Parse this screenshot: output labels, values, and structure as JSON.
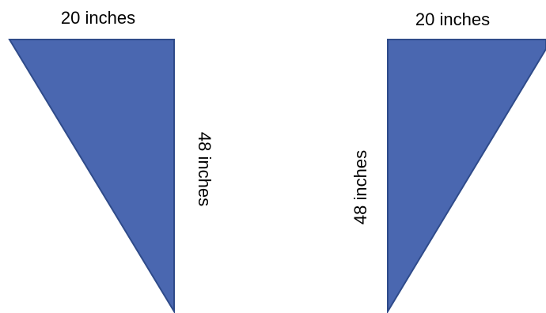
{
  "colors": {
    "triangle_fill": "#4a67b0",
    "triangle_stroke": "#2f4b8a",
    "text": "#000000",
    "background": "#ffffff"
  },
  "left_triangle": {
    "top_label": "20 inches",
    "side_label": "48 inches"
  },
  "right_triangle": {
    "top_label": "20 inches",
    "side_label": "48 inches"
  }
}
